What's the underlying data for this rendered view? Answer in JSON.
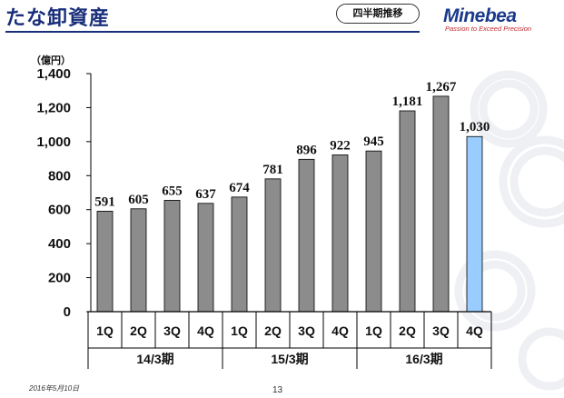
{
  "header": {
    "title": "たな卸資産",
    "badge": "四半期推移",
    "logo": "Minebea",
    "tagline": "Passion to Exceed Precision"
  },
  "footer": {
    "date": "2016年5月10日",
    "page": "13"
  },
  "colors": {
    "bar": "#8c8c8c",
    "highlight_bar": "#99ccff",
    "title": "#1a2f7a"
  },
  "chart_data": {
    "type": "bar",
    "unit": "（億円）",
    "categories": [
      "1Q",
      "2Q",
      "3Q",
      "4Q",
      "1Q",
      "2Q",
      "3Q",
      "4Q",
      "1Q",
      "2Q",
      "3Q",
      "4Q"
    ],
    "groups": [
      {
        "label": "14/3期",
        "size": 4
      },
      {
        "label": "15/3期",
        "size": 4
      },
      {
        "label": "16/3期",
        "size": 4
      }
    ],
    "values": [
      591,
      605,
      655,
      637,
      674,
      781,
      896,
      922,
      945,
      1181,
      1267,
      1030
    ],
    "value_labels": [
      "591",
      "605",
      "655",
      "637",
      "674",
      "781",
      "896",
      "922",
      "945",
      "1,181",
      "1,267",
      "1,030"
    ],
    "highlight_index": 11,
    "ylim": [
      0,
      1400
    ],
    "yticks": [
      0,
      200,
      400,
      600,
      800,
      1000,
      1200,
      1400
    ],
    "ytick_labels": [
      "0",
      "200",
      "400",
      "600",
      "800",
      "1,000",
      "1,200",
      "1,400"
    ],
    "grid": false
  }
}
